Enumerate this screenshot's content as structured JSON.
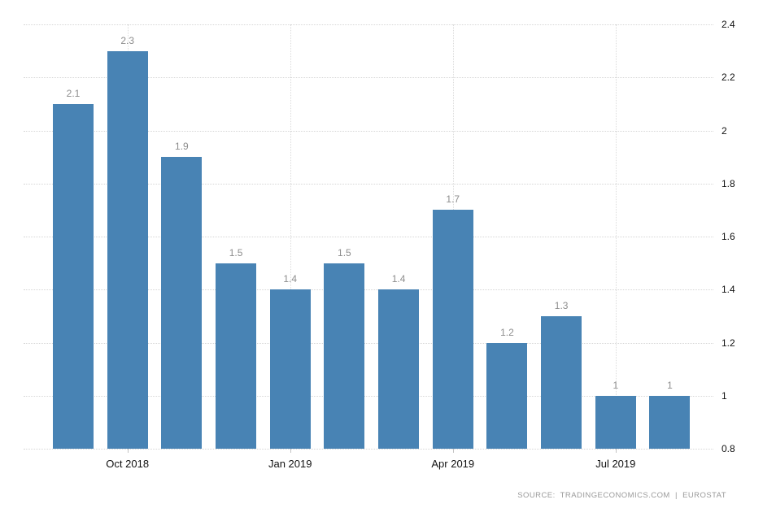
{
  "chart_data": {
    "type": "bar",
    "title": "",
    "xlabel": "",
    "ylabel": "",
    "values": [
      2.1,
      2.3,
      1.9,
      1.5,
      1.4,
      1.5,
      1.4,
      1.7,
      1.2,
      1.3,
      1,
      1
    ],
    "data_labels": [
      "2.1",
      "2.3",
      "1.9",
      "1.5",
      "1.4",
      "1.5",
      "1.4",
      "1.7",
      "1.2",
      "1.3",
      "1",
      "1"
    ],
    "x_ticks": [
      {
        "label": "Oct 2018",
        "bar_index": 1
      },
      {
        "label": "Jan 2019",
        "bar_index": 4
      },
      {
        "label": "Apr 2019",
        "bar_index": 7
      },
      {
        "label": "Jul 2019",
        "bar_index": 10
      }
    ],
    "y_ticks": [
      "0.8",
      "1",
      "1.2",
      "1.4",
      "1.6",
      "1.8",
      "2",
      "2.2",
      "2.4"
    ],
    "ylim": [
      0.8,
      2.4
    ],
    "y_axis_side": "right",
    "bar_color": "#4883b4",
    "grid": {
      "horizontal": true,
      "vertical_at_x_ticks": true,
      "line_style": "dotted"
    },
    "legend": null
  },
  "footer": {
    "source_text": "SOURCE:  TRADINGECONOMICS.COM  |  EUROSTAT"
  }
}
